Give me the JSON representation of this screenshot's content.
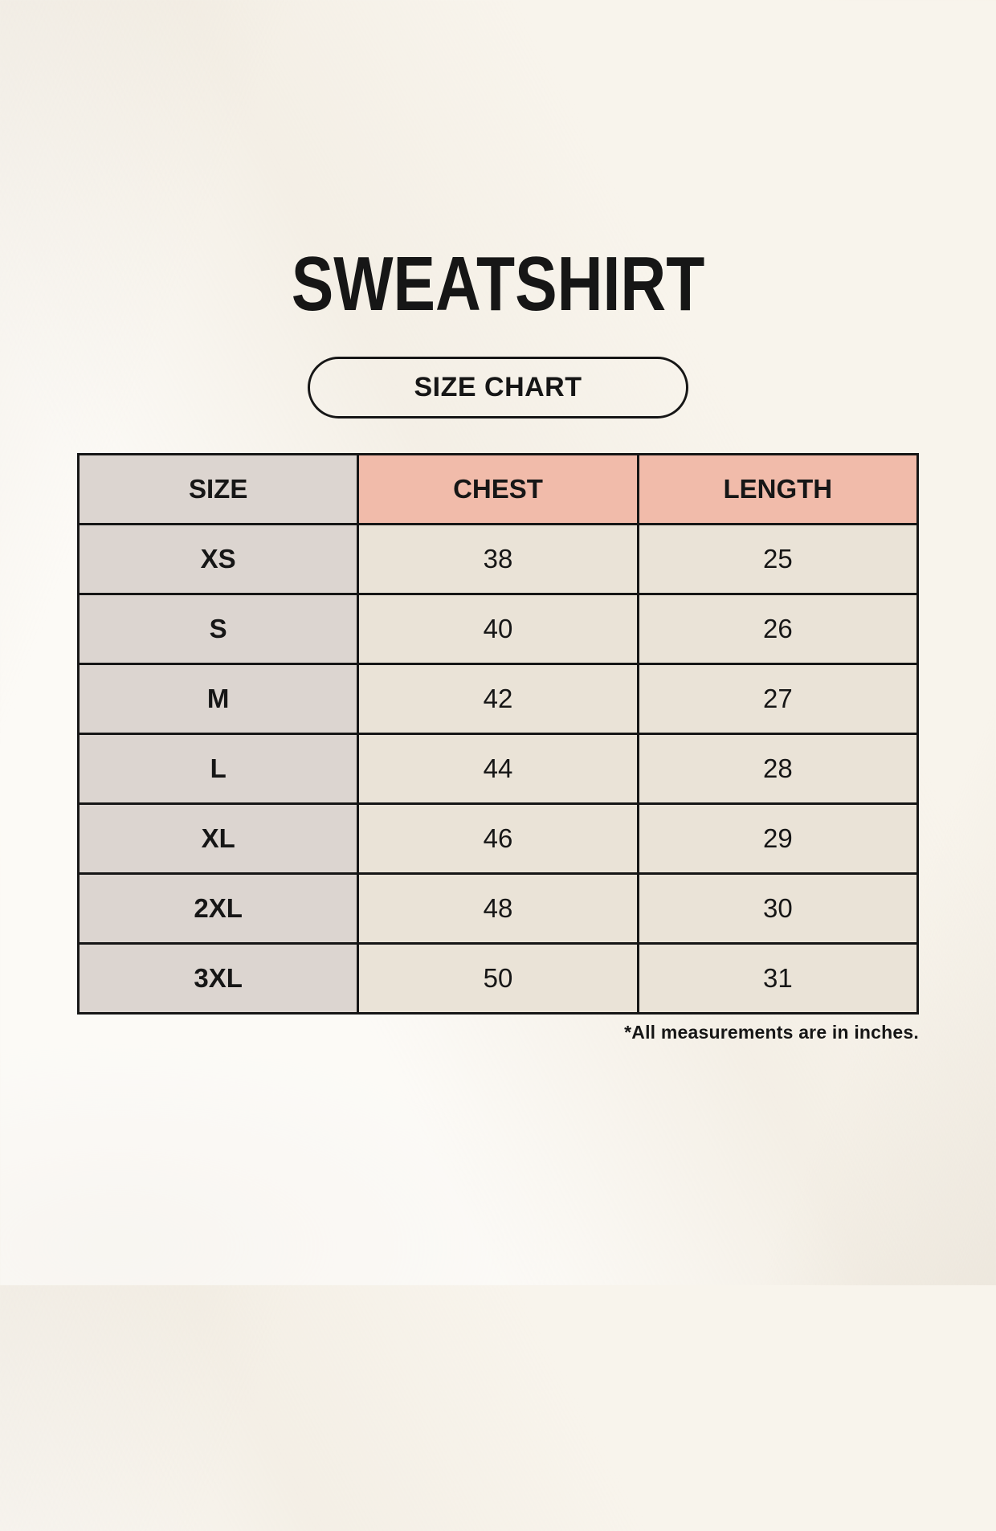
{
  "page": {
    "title": "SWEATSHIRT",
    "badge_label": "SIZE CHART",
    "footnote": "*All measurements are in inches."
  },
  "size_table": {
    "headers": [
      "SIZE",
      "CHEST",
      "LENGTH"
    ],
    "rows": [
      {
        "size": "XS",
        "chest": "38",
        "length": "25"
      },
      {
        "size": "S",
        "chest": "40",
        "length": "26"
      },
      {
        "size": "M",
        "chest": "42",
        "length": "27"
      },
      {
        "size": "L",
        "chest": "44",
        "length": "28"
      },
      {
        "size": "XL",
        "chest": "46",
        "length": "29"
      },
      {
        "size": "2XL",
        "chest": "48",
        "length": "30"
      },
      {
        "size": "3XL",
        "chest": "50",
        "length": "31"
      }
    ]
  },
  "colors": {
    "page_background": "#f8f4ec",
    "size_column_fill": "#dcd5d0",
    "accent_header_fill": "#f1bbaa",
    "data_cell_fill": "#eae3d7",
    "table_border": "#161616",
    "text": "#161616"
  },
  "chart_data": {
    "type": "table",
    "title": "SWEATSHIRT",
    "subtitle": "SIZE CHART",
    "columns": [
      "SIZE",
      "CHEST",
      "LENGTH"
    ],
    "rows": [
      [
        "XS",
        38,
        25
      ],
      [
        "S",
        40,
        26
      ],
      [
        "M",
        42,
        27
      ],
      [
        "L",
        44,
        28
      ],
      [
        "XL",
        46,
        29
      ],
      [
        "2XL",
        48,
        30
      ],
      [
        "3XL",
        50,
        31
      ]
    ],
    "footnote": "*All measurements are in inches."
  }
}
